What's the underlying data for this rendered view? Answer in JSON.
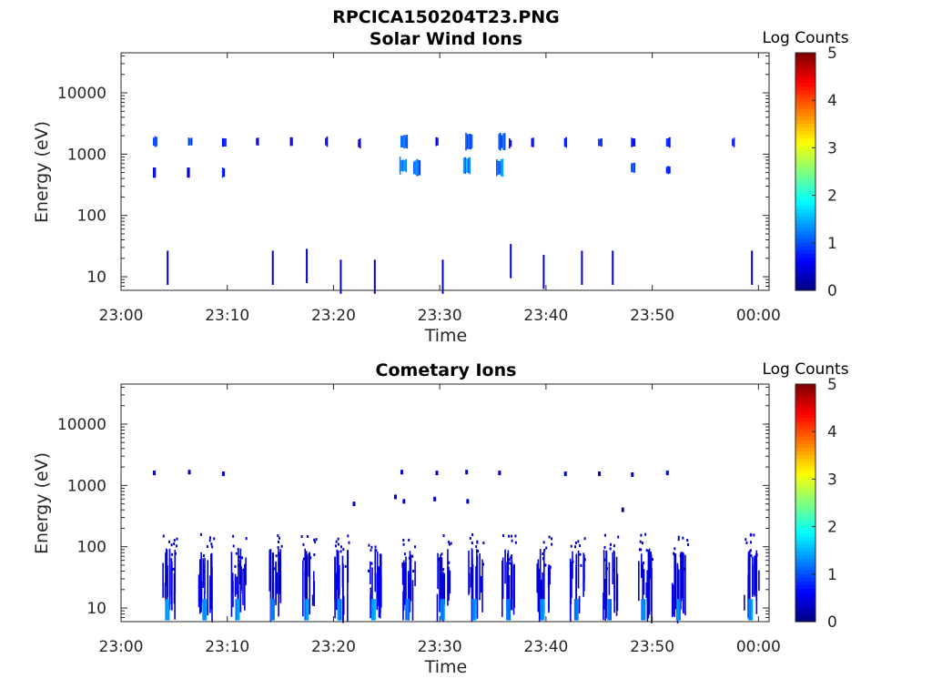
{
  "figure": {
    "title": "RPCICA150204T23.PNG"
  },
  "chart_data": [
    {
      "type": "heatmap",
      "title": "Solar Wind Ions",
      "xlabel": "Time",
      "ylabel": "Energy (eV)",
      "x_ticks": [
        "23:00",
        "23:10",
        "23:20",
        "23:30",
        "23:40",
        "23:50",
        "00:00"
      ],
      "x_range_min": [
        0,
        61
      ],
      "y_scale": "log",
      "y_ticks": [
        "10",
        "100",
        "1000",
        "10000"
      ],
      "y_range": [
        6,
        45000
      ],
      "colorbar": {
        "label": "Log Counts",
        "range": [
          0,
          5
        ],
        "ticks": [
          "0",
          "1",
          "2",
          "3",
          "4",
          "5"
        ],
        "colormap": "jet"
      },
      "bursts": [
        {
          "t": 3.0,
          "e": 1600,
          "v": 0.9
        },
        {
          "t": 3.0,
          "e": 500,
          "v": 0.6
        },
        {
          "t": 6.3,
          "e": 1600,
          "v": 0.9
        },
        {
          "t": 6.2,
          "e": 500,
          "v": 0.5
        },
        {
          "t": 9.5,
          "e": 1550,
          "v": 0.8
        },
        {
          "t": 9.5,
          "e": 500,
          "v": 0.7
        },
        {
          "t": 12.7,
          "e": 1600,
          "v": 0.5
        },
        {
          "t": 15.9,
          "e": 1600,
          "v": 0.5
        },
        {
          "t": 19.2,
          "e": 1600,
          "v": 0.5
        },
        {
          "t": 22.3,
          "e": 1500,
          "v": 0.4
        },
        {
          "t": 26.3,
          "e": 1600,
          "v": 1.1
        },
        {
          "t": 26.2,
          "e": 650,
          "v": 1.4
        },
        {
          "t": 27.5,
          "e": 600,
          "v": 1.2
        },
        {
          "t": 29.6,
          "e": 1600,
          "v": 0.5
        },
        {
          "t": 32.4,
          "e": 1600,
          "v": 1.1
        },
        {
          "t": 32.2,
          "e": 650,
          "v": 1.3
        },
        {
          "t": 35.5,
          "e": 1600,
          "v": 1.2
        },
        {
          "t": 35.3,
          "e": 600,
          "v": 1.3
        },
        {
          "t": 36.5,
          "e": 1500,
          "v": 0.6
        },
        {
          "t": 38.6,
          "e": 1550,
          "v": 0.6
        },
        {
          "t": 41.7,
          "e": 1550,
          "v": 0.7
        },
        {
          "t": 44.9,
          "e": 1550,
          "v": 0.8
        },
        {
          "t": 48.0,
          "e": 1550,
          "v": 0.8
        },
        {
          "t": 48.0,
          "e": 600,
          "v": 1.0
        },
        {
          "t": 51.3,
          "e": 1550,
          "v": 0.8
        },
        {
          "t": 51.3,
          "e": 550,
          "v": 0.8
        },
        {
          "t": 57.5,
          "e": 1550,
          "v": 0.7
        },
        {
          "t": 4.3,
          "e": 14,
          "v": 0.4
        },
        {
          "t": 14.2,
          "e": 14,
          "v": 0.4
        },
        {
          "t": 17.4,
          "e": 15,
          "v": 0.4
        },
        {
          "t": 20.6,
          "e": 10,
          "v": 0.4
        },
        {
          "t": 23.8,
          "e": 10,
          "v": 0.4
        },
        {
          "t": 30.2,
          "e": 10,
          "v": 0.4
        },
        {
          "t": 36.6,
          "e": 18,
          "v": 0.4
        },
        {
          "t": 39.7,
          "e": 12,
          "v": 0.4
        },
        {
          "t": 43.3,
          "e": 14,
          "v": 0.4
        },
        {
          "t": 46.2,
          "e": 14,
          "v": 0.4
        },
        {
          "t": 59.3,
          "e": 14,
          "v": 0.4
        }
      ]
    },
    {
      "type": "heatmap",
      "title": "Cometary Ions",
      "xlabel": "Time",
      "ylabel": "Energy (eV)",
      "x_ticks": [
        "23:00",
        "23:10",
        "23:20",
        "23:30",
        "23:40",
        "23:50",
        "00:00"
      ],
      "x_range_min": [
        0,
        61
      ],
      "y_scale": "log",
      "y_ticks": [
        "10",
        "100",
        "1000",
        "10000"
      ],
      "y_range": [
        6,
        45000
      ],
      "colorbar": {
        "label": "Log Counts",
        "range": [
          0,
          5
        ],
        "ticks": [
          "0",
          "1",
          "2",
          "3",
          "4",
          "5"
        ],
        "colormap": "jet"
      },
      "burst_times_min": [
        4.3,
        7.8,
        10.9,
        14.2,
        17.4,
        20.5,
        23.7,
        26.9,
        30.2,
        33.2,
        36.4,
        39.6,
        42.8,
        45.9,
        49.1,
        52.4,
        59.2
      ],
      "sparse_high_energy": [
        {
          "t": 3.0,
          "e": 1600
        },
        {
          "t": 6.3,
          "e": 1650
        },
        {
          "t": 9.5,
          "e": 1550
        },
        {
          "t": 26.3,
          "e": 1650
        },
        {
          "t": 29.6,
          "e": 1600
        },
        {
          "t": 32.4,
          "e": 1650
        },
        {
          "t": 35.5,
          "e": 1600
        },
        {
          "t": 41.7,
          "e": 1550
        },
        {
          "t": 44.9,
          "e": 1550
        },
        {
          "t": 48.0,
          "e": 1500
        },
        {
          "t": 51.3,
          "e": 1600
        },
        {
          "t": 25.7,
          "e": 650
        },
        {
          "t": 26.5,
          "e": 550
        },
        {
          "t": 29.4,
          "e": 600
        },
        {
          "t": 32.5,
          "e": 550
        },
        {
          "t": 47.1,
          "e": 400
        },
        {
          "t": 21.8,
          "e": 500
        }
      ]
    }
  ]
}
